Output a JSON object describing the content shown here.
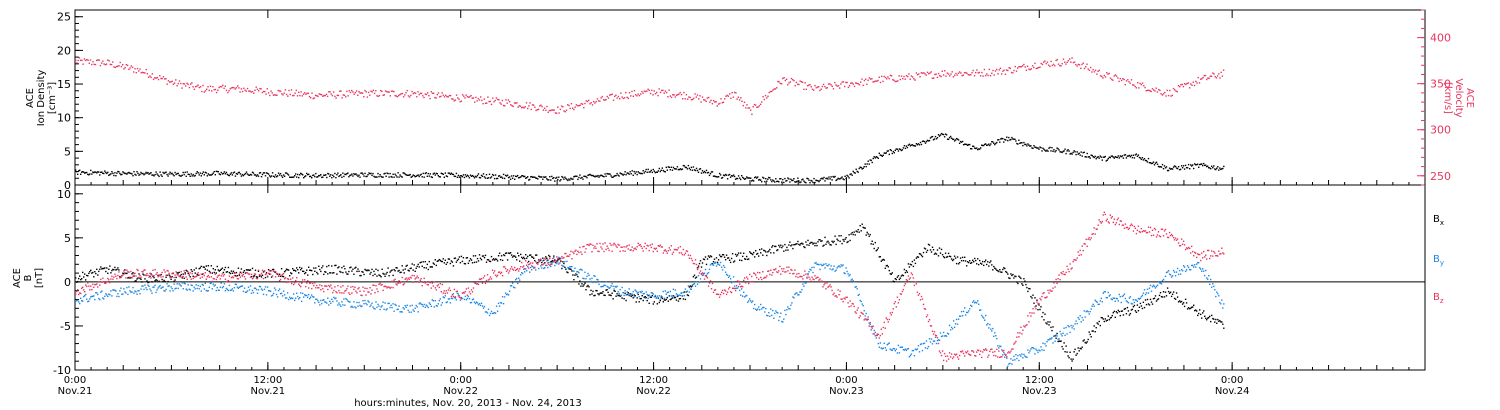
{
  "colors": {
    "black": "#000000",
    "pink": "#e8365f",
    "blue": "#1e88e5"
  },
  "x_axis": {
    "ticks": [
      {
        "time": "0:00",
        "date": "Nov.21"
      },
      {
        "time": "12:00",
        "date": "Nov.21"
      },
      {
        "time": "0:00",
        "date": "Nov.22"
      },
      {
        "time": "12:00",
        "date": "Nov.22"
      },
      {
        "time": "0:00",
        "date": "Nov.23"
      },
      {
        "time": "12:00",
        "date": "Nov.23"
      },
      {
        "time": "0:00",
        "date": "Nov.24"
      }
    ],
    "label": "hours:minutes, Nov. 20, 2013 - Nov. 24, 2013"
  },
  "top_panel": {
    "left_label_lines": [
      "ACE",
      "Ion Density",
      "[cm⁻³]"
    ],
    "right_label_lines": [
      "ACE",
      "Velocity",
      "[km/s]"
    ]
  },
  "bottom_panel": {
    "left_label_lines": [
      "ACE",
      "B",
      "[nT]"
    ],
    "legend": [
      "Bx",
      "By",
      "Bz"
    ]
  },
  "chart_data": [
    {
      "type": "scatter",
      "panel": "top",
      "xlabel": "hours:minutes, Nov. 20, 2013 - Nov. 24, 2013",
      "x_range": [
        "2013-11-21T00:00",
        "2013-11-24T12:00"
      ],
      "left_axis": {
        "label": "ACE Ion Density [cm^-3]",
        "ylim": [
          0,
          26
        ],
        "ticks": [
          0,
          5,
          10,
          15,
          20,
          25
        ]
      },
      "right_axis": {
        "label": "ACE Velocity [km/s]",
        "ylim": [
          240,
          430
        ],
        "ticks": [
          250,
          300,
          350,
          400
        ]
      },
      "series": [
        {
          "axis": "left",
          "color": "#000000",
          "points": [
            [
              "2013-11-21T00:00",
              2.0
            ],
            [
              "2013-11-21T03:00",
              1.8
            ],
            [
              "2013-11-21T06:00",
              1.7
            ],
            [
              "2013-11-21T09:00",
              1.8
            ],
            [
              "2013-11-21T12:00",
              1.6
            ],
            [
              "2013-11-21T15:00",
              1.5
            ],
            [
              "2013-11-21T18:00",
              1.6
            ],
            [
              "2013-11-21T21:00",
              1.6
            ],
            [
              "2013-11-22T00:00",
              1.5
            ],
            [
              "2013-11-22T03:00",
              1.3
            ],
            [
              "2013-11-22T06:00",
              1.0
            ],
            [
              "2013-11-22T09:00",
              1.5
            ],
            [
              "2013-11-22T12:00",
              2.2
            ],
            [
              "2013-11-22T14:00",
              2.8
            ],
            [
              "2013-11-22T16:00",
              1.5
            ],
            [
              "2013-11-22T18:00",
              1.0
            ],
            [
              "2013-11-22T20:00",
              0.8
            ],
            [
              "2013-11-22T22:00",
              0.8
            ],
            [
              "2013-11-23T00:00",
              1.2
            ],
            [
              "2013-11-23T02:00",
              4.5
            ],
            [
              "2013-11-23T04:00",
              6.0
            ],
            [
              "2013-11-23T06:00",
              7.5
            ],
            [
              "2013-11-23T08:00",
              5.5
            ],
            [
              "2013-11-23T10:00",
              7.0
            ],
            [
              "2013-11-23T12:00",
              5.5
            ],
            [
              "2013-11-23T14:00",
              5.0
            ],
            [
              "2013-11-23T16:00",
              4.0
            ],
            [
              "2013-11-23T18:00",
              4.5
            ],
            [
              "2013-11-23T20:00",
              2.5
            ],
            [
              "2013-11-23T22:00",
              3.0
            ],
            [
              "2013-11-23T23:30",
              2.5
            ]
          ]
        },
        {
          "axis": "right",
          "color": "#e8365f",
          "points": [
            [
              "2013-11-21T00:00",
              375
            ],
            [
              "2013-11-21T02:00",
              373
            ],
            [
              "2013-11-21T04:00",
              365
            ],
            [
              "2013-11-21T06:00",
              352
            ],
            [
              "2013-11-21T08:00",
              345
            ],
            [
              "2013-11-21T10:00",
              345
            ],
            [
              "2013-11-21T12:00",
              342
            ],
            [
              "2013-11-21T15:00",
              338
            ],
            [
              "2013-11-21T18:00",
              340
            ],
            [
              "2013-11-21T21:00",
              340
            ],
            [
              "2013-11-22T00:00",
              335
            ],
            [
              "2013-11-22T03:00",
              330
            ],
            [
              "2013-11-22T06:00",
              322
            ],
            [
              "2013-11-22T08:00",
              330
            ],
            [
              "2013-11-22T10:00",
              338
            ],
            [
              "2013-11-22T12:00",
              342
            ],
            [
              "2013-11-22T14:00",
              338
            ],
            [
              "2013-11-22T16:00",
              330
            ],
            [
              "2013-11-22T17:00",
              340
            ],
            [
              "2013-11-22T18:00",
              320
            ],
            [
              "2013-11-22T20:00",
              355
            ],
            [
              "2013-11-22T22:00",
              345
            ],
            [
              "2013-11-23T00:00",
              350
            ],
            [
              "2013-11-23T02:00",
              355
            ],
            [
              "2013-11-23T04:00",
              358
            ],
            [
              "2013-11-23T06:00",
              362
            ],
            [
              "2013-11-23T08:00",
              362
            ],
            [
              "2013-11-23T10:00",
              365
            ],
            [
              "2013-11-23T12:00",
              372
            ],
            [
              "2013-11-23T14:00",
              375
            ],
            [
              "2013-11-23T16:00",
              360
            ],
            [
              "2013-11-23T18:00",
              350
            ],
            [
              "2013-11-23T20:00",
              340
            ],
            [
              "2013-11-23T22:00",
              355
            ],
            [
              "2013-11-23T23:30",
              362
            ]
          ]
        }
      ]
    },
    {
      "type": "scatter",
      "panel": "bottom",
      "xlabel": "hours:minutes, Nov. 20, 2013 - Nov. 24, 2013",
      "x_range": [
        "2013-11-21T00:00",
        "2013-11-24T12:00"
      ],
      "ylabel": "ACE B [nT]",
      "ylim": [
        -10,
        11
      ],
      "yticks": [
        -10,
        -5,
        0,
        5,
        10
      ],
      "zero_line": true,
      "series": [
        {
          "name": "Bx",
          "color": "#000000",
          "points": [
            [
              "2013-11-21T00:00",
              0.5
            ],
            [
              "2013-11-21T02:00",
              1.5
            ],
            [
              "2013-11-21T04:00",
              0.5
            ],
            [
              "2013-11-21T06:00",
              0.5
            ],
            [
              "2013-11-21T08:00",
              1.5
            ],
            [
              "2013-11-21T12:00",
              1.0
            ],
            [
              "2013-11-21T16:00",
              1.5
            ],
            [
              "2013-11-21T19:00",
              1.0
            ],
            [
              "2013-11-21T22:00",
              2.0
            ],
            [
              "2013-11-22T00:00",
              2.5
            ],
            [
              "2013-11-22T03:00",
              3.0
            ],
            [
              "2013-11-22T06:00",
              2.5
            ],
            [
              "2013-11-22T08:00",
              -1.0
            ],
            [
              "2013-11-22T10:00",
              -1.5
            ],
            [
              "2013-11-22T12:00",
              -2.0
            ],
            [
              "2013-11-22T14:00",
              -1.5
            ],
            [
              "2013-11-22T15:00",
              2.5
            ],
            [
              "2013-11-22T18:00",
              3.0
            ],
            [
              "2013-11-22T20:00",
              4.0
            ],
            [
              "2013-11-22T22:00",
              4.5
            ],
            [
              "2013-11-23T00:00",
              5.0
            ],
            [
              "2013-11-23T01:00",
              6.5
            ],
            [
              "2013-11-23T03:00",
              0.0
            ],
            [
              "2013-11-23T05:00",
              4.0
            ],
            [
              "2013-11-23T07:00",
              2.5
            ],
            [
              "2013-11-23T09:00",
              2.0
            ],
            [
              "2013-11-23T11:00",
              0.0
            ],
            [
              "2013-11-23T13:00",
              -6.0
            ],
            [
              "2013-11-23T14:00",
              -8.5
            ],
            [
              "2013-11-23T16:00",
              -4.0
            ],
            [
              "2013-11-23T18:00",
              -3.0
            ],
            [
              "2013-11-23T20:00",
              -1.0
            ],
            [
              "2013-11-23T22:00",
              -3.5
            ],
            [
              "2013-11-23T23:30",
              -5.0
            ]
          ]
        },
        {
          "name": "By",
          "color": "#1e88e5",
          "points": [
            [
              "2013-11-21T00:00",
              -2.0
            ],
            [
              "2013-11-21T03:00",
              -1.0
            ],
            [
              "2013-11-21T06:00",
              -0.5
            ],
            [
              "2013-11-21T09:00",
              -0.5
            ],
            [
              "2013-11-21T12:00",
              -1.0
            ],
            [
              "2013-11-21T15:00",
              -2.0
            ],
            [
              "2013-11-21T18:00",
              -2.5
            ],
            [
              "2013-11-21T21:00",
              -3.0
            ],
            [
              "2013-11-22T00:00",
              -1.5
            ],
            [
              "2013-11-22T02:00",
              -3.5
            ],
            [
              "2013-11-22T04:00",
              1.5
            ],
            [
              "2013-11-22T06:00",
              2.5
            ],
            [
              "2013-11-22T08:00",
              0.5
            ],
            [
              "2013-11-22T10:00",
              -1.0
            ],
            [
              "2013-11-22T12:00",
              -1.5
            ],
            [
              "2013-11-22T14:00",
              -1.0
            ],
            [
              "2013-11-22T16:00",
              2.5
            ],
            [
              "2013-11-22T18:00",
              -2.5
            ],
            [
              "2013-11-22T20:00",
              -4.0
            ],
            [
              "2013-11-22T22:00",
              2.0
            ],
            [
              "2013-11-23T00:00",
              1.5
            ],
            [
              "2013-11-23T02:00",
              -7.0
            ],
            [
              "2013-11-23T04:00",
              -8.0
            ],
            [
              "2013-11-23T06:00",
              -6.0
            ],
            [
              "2013-11-23T08:00",
              -2.0
            ],
            [
              "2013-11-23T10:00",
              -9.0
            ],
            [
              "2013-11-23T12:00",
              -7.5
            ],
            [
              "2013-11-23T14:00",
              -5.0
            ],
            [
              "2013-11-23T16:00",
              -1.5
            ],
            [
              "2013-11-23T18:00",
              -2.0
            ],
            [
              "2013-11-23T20:00",
              1.0
            ],
            [
              "2013-11-23T22:00",
              2.0
            ],
            [
              "2013-11-23T23:30",
              -3.0
            ]
          ]
        },
        {
          "name": "Bz",
          "color": "#e8365f",
          "points": [
            [
              "2013-11-21T00:00",
              -1.0
            ],
            [
              "2013-11-21T03:00",
              1.0
            ],
            [
              "2013-11-21T06:00",
              1.0
            ],
            [
              "2013-11-21T09:00",
              0.5
            ],
            [
              "2013-11-21T12:00",
              1.0
            ],
            [
              "2013-11-21T15:00",
              -0.5
            ],
            [
              "2013-11-21T18:00",
              -1.0
            ],
            [
              "2013-11-21T21:00",
              0.5
            ],
            [
              "2013-11-22T00:00",
              -1.5
            ],
            [
              "2013-11-22T02:00",
              1.0
            ],
            [
              "2013-11-22T04:00",
              2.0
            ],
            [
              "2013-11-22T06:00",
              2.5
            ],
            [
              "2013-11-22T08:00",
              4.0
            ],
            [
              "2013-11-22T10:00",
              4.0
            ],
            [
              "2013-11-22T12:00",
              4.0
            ],
            [
              "2013-11-22T14:00",
              3.5
            ],
            [
              "2013-11-22T16:00",
              -1.5
            ],
            [
              "2013-11-22T18:00",
              0.5
            ],
            [
              "2013-11-22T20:00",
              1.5
            ],
            [
              "2013-11-22T22:00",
              0.5
            ],
            [
              "2013-11-23T00:00",
              -2.0
            ],
            [
              "2013-11-23T02:00",
              -6.0
            ],
            [
              "2013-11-23T04:00",
              1.0
            ],
            [
              "2013-11-23T06:00",
              -8.5
            ],
            [
              "2013-11-23T08:00",
              -8.0
            ],
            [
              "2013-11-23T10:00",
              -8.0
            ],
            [
              "2013-11-23T12:00",
              -2.0
            ],
            [
              "2013-11-23T14:00",
              2.0
            ],
            [
              "2013-11-23T16:00",
              7.5
            ],
            [
              "2013-11-23T18:00",
              6.0
            ],
            [
              "2013-11-23T20:00",
              5.5
            ],
            [
              "2013-11-23T22:00",
              3.0
            ],
            [
              "2013-11-23T23:30",
              3.5
            ]
          ]
        }
      ]
    }
  ]
}
